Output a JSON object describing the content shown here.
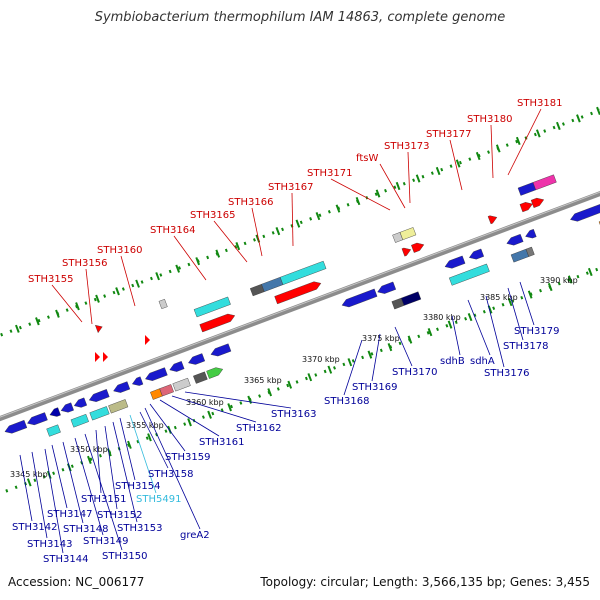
{
  "title": "Symbiobacterium thermophilum IAM 14863, complete genome",
  "footer": {
    "accession": "Accession: NC_006177",
    "summary": "Topology: circular; Length: 3,566,135 bp; Genes: 3,455"
  },
  "colors": {
    "backbone": "#8c8c8c",
    "top_label": "#cc0000",
    "bottom_label": "#000099",
    "rna_label": "#33bbdd",
    "guide": "#118811"
  },
  "scale_ticks": [
    "3345 kbp",
    "3350 kbp",
    "3355 kbp",
    "3360 kbp",
    "3365 kbp",
    "3370 kbp",
    "3375 kbp",
    "3380 kbp",
    "3385 kbp",
    "3390 kbp"
  ],
  "top_labels": [
    "STH3155",
    "STH3156",
    "STH3160",
    "STH3164",
    "STH3165",
    "STH3166",
    "STH3167",
    "STH3171",
    "ftsW",
    "STH3173",
    "STH3177",
    "STH3180",
    "STH3181"
  ],
  "bottom_labels": [
    "STH3142",
    "STH3143",
    "STH3144",
    "STH3147",
    "STH3148",
    "STH3149",
    "STH3150",
    "STH3151",
    "STH3152",
    "STH3153",
    "STH3154",
    "STH5491",
    "STH3158",
    "greA2",
    "STH3159",
    "STH3161",
    "STH3162",
    "STH3163",
    "STH3168",
    "STH3169",
    "STH3170",
    "sdhB",
    "sdhA",
    "STH3176",
    "STH3178",
    "STH3179"
  ]
}
